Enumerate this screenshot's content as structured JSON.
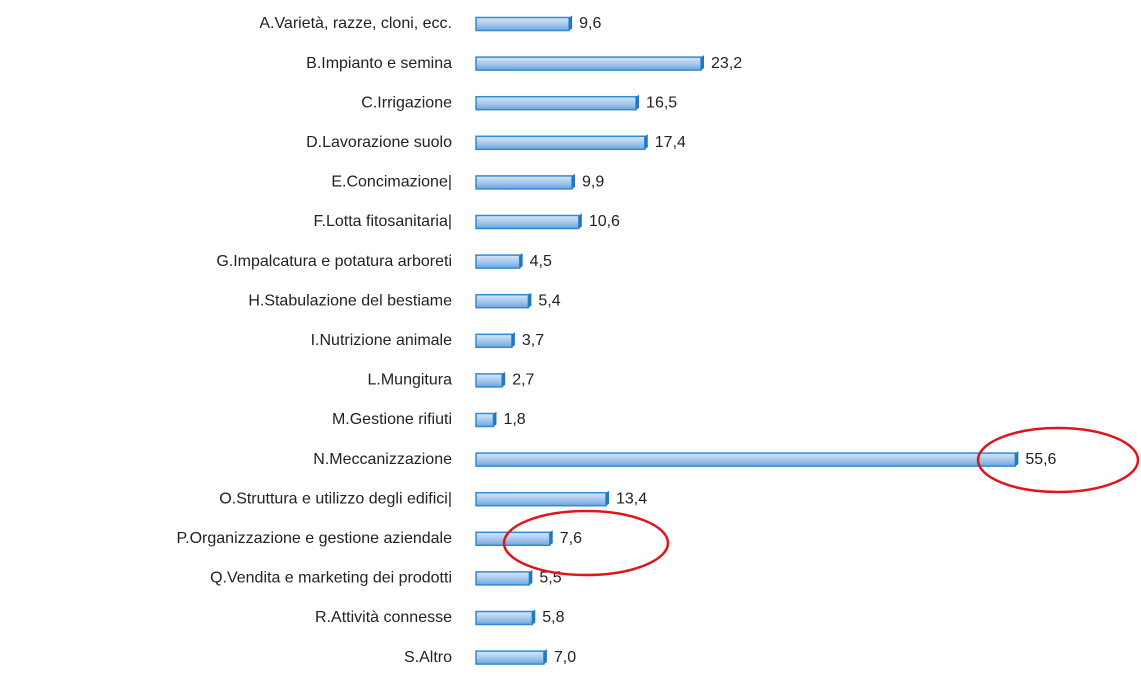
{
  "chart_data": {
    "type": "bar",
    "orientation": "horizontal",
    "categories": [
      "A.Varietà, razze, cloni, ecc.",
      "B.Impianto e semina",
      "C.Irrigazione",
      "D.Lavorazione suolo",
      "E.Concimazione|",
      "F.Lotta fitosanitaria|",
      "G.Impalcatura e potatura arboreti",
      "H.Stabulazione del bestiame",
      "I.Nutrizione animale",
      "L.Mungitura",
      "M.Gestione rifiuti",
      "N.Meccanizzazione",
      "O.Struttura e utilizzo degli edifici|",
      "P.Organizzazione e gestione aziendale",
      "Q.Vendita e marketing dei prodotti",
      "R.Attività connesse",
      "S.Altro"
    ],
    "values": [
      9.6,
      23.2,
      16.5,
      17.4,
      9.9,
      10.6,
      4.5,
      5.4,
      3.7,
      2.7,
      1.8,
      55.6,
      13.4,
      7.6,
      5.5,
      5.8,
      7.0
    ],
    "value_labels": [
      "9,6",
      "23,2",
      "16,5",
      "17,4",
      "9,9",
      "10,6",
      "4,5",
      "5,4",
      "3,7",
      "2,7",
      "1,8",
      "55,6",
      "13,4",
      "7,6",
      "5,5",
      "5,8",
      "7,0"
    ],
    "color": "#a9c9ee"
  }
}
